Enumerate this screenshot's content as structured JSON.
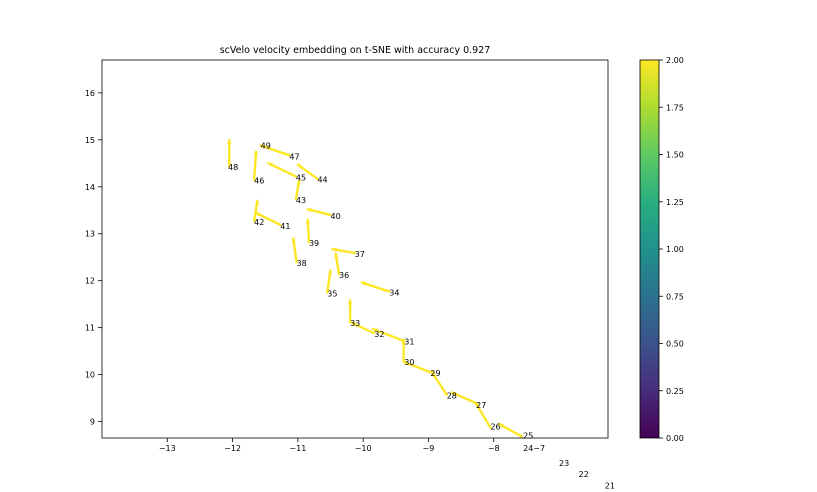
{
  "chart_data": {
    "type": "scatter",
    "title": "scVelo velocity embedding on t-SNE with accuracy 0.927",
    "xlim": [
      -14.0,
      -6.25
    ],
    "ylim": [
      8.65,
      16.7
    ],
    "x_ticks": [
      -13,
      -12,
      -11,
      -10,
      -9,
      -8
    ],
    "x_tick_labels": [
      "−13",
      "−12",
      "−11",
      "−10",
      "−9",
      "−8"
    ],
    "y_ticks": [
      9,
      10,
      11,
      12,
      13,
      14,
      15,
      16
    ],
    "y_tick_labels": [
      "9",
      "10",
      "11",
      "12",
      "13",
      "14",
      "15",
      "16"
    ],
    "arrow_color": "#fde725",
    "points": [
      {
        "label": "25",
        "x": -7.55,
        "y": 8.7
      },
      {
        "label": "26",
        "x": -8.05,
        "y": 8.9
      },
      {
        "label": "27",
        "x": -8.27,
        "y": 9.35
      },
      {
        "label": "28",
        "x": -8.72,
        "y": 9.55
      },
      {
        "label": "29",
        "x": -8.97,
        "y": 10.03
      },
      {
        "label": "30",
        "x": -9.37,
        "y": 10.27
      },
      {
        "label": "31",
        "x": -9.37,
        "y": 10.7
      },
      {
        "label": "32",
        "x": -9.83,
        "y": 10.87
      },
      {
        "label": "33",
        "x": -10.2,
        "y": 11.1
      },
      {
        "label": "34",
        "x": -9.6,
        "y": 11.75
      },
      {
        "label": "35",
        "x": -10.55,
        "y": 11.73
      },
      {
        "label": "36",
        "x": -10.37,
        "y": 12.12
      },
      {
        "label": "37",
        "x": -10.13,
        "y": 12.57
      },
      {
        "label": "38",
        "x": -11.02,
        "y": 12.38
      },
      {
        "label": "39",
        "x": -10.83,
        "y": 12.8
      },
      {
        "label": "40",
        "x": -10.5,
        "y": 13.38
      },
      {
        "label": "41",
        "x": -11.27,
        "y": 13.17
      },
      {
        "label": "42",
        "x": -11.67,
        "y": 13.25
      },
      {
        "label": "43",
        "x": -11.03,
        "y": 13.72
      },
      {
        "label": "44",
        "x": -10.7,
        "y": 14.15
      },
      {
        "label": "45",
        "x": -11.03,
        "y": 14.2
      },
      {
        "label": "46",
        "x": -11.67,
        "y": 14.13
      },
      {
        "label": "47",
        "x": -11.13,
        "y": 14.65
      },
      {
        "label": "48",
        "x": -12.07,
        "y": 14.42
      },
      {
        "label": "49",
        "x": -11.57,
        "y": 14.88
      }
    ],
    "arrows": [
      [
        -7.57,
        8.68,
        -7.92,
        8.95
      ],
      [
        -8.05,
        8.87,
        -8.27,
        9.38
      ],
      [
        -8.25,
        9.38,
        -8.64,
        9.62
      ],
      [
        -8.72,
        9.57,
        -8.95,
        10.06
      ],
      [
        -8.97,
        10.05,
        -9.38,
        10.27
      ],
      [
        -9.38,
        10.29,
        -9.38,
        10.74
      ],
      [
        -9.38,
        10.72,
        -9.85,
        10.97
      ],
      [
        -9.83,
        10.88,
        -10.17,
        11.1
      ],
      [
        -10.2,
        11.12,
        -10.2,
        11.58
      ],
      [
        -9.6,
        11.77,
        -10.02,
        11.96
      ],
      [
        -10.55,
        11.75,
        -10.5,
        12.22
      ],
      [
        -10.37,
        12.14,
        -10.42,
        12.57
      ],
      [
        -10.13,
        12.59,
        -10.47,
        12.67
      ],
      [
        -11.02,
        12.4,
        -11.07,
        12.9
      ],
      [
        -10.83,
        12.82,
        -10.85,
        13.3
      ],
      [
        -10.5,
        13.4,
        -10.85,
        13.52
      ],
      [
        -11.27,
        13.19,
        -11.65,
        13.45
      ],
      [
        -11.67,
        13.27,
        -11.62,
        13.7
      ],
      [
        -11.03,
        13.74,
        -10.98,
        14.13
      ],
      [
        -10.7,
        14.17,
        -11.0,
        14.47
      ],
      [
        -11.03,
        14.22,
        -11.45,
        14.5
      ],
      [
        -11.67,
        14.15,
        -11.64,
        14.75
      ],
      [
        -11.13,
        14.67,
        -11.57,
        14.88
      ],
      [
        -12.05,
        14.44,
        -12.05,
        15.0
      ]
    ],
    "overflow_labels": [
      {
        "label": "24",
        "text": "24−7",
        "x": -7.55,
        "y": 8.44
      },
      {
        "label": "23",
        "text": "23",
        "x": -7.0,
        "y": 8.12
      },
      {
        "label": "22",
        "text": "22",
        "x": -6.7,
        "y": 7.88
      },
      {
        "label": "21",
        "text": "21",
        "x": -6.3,
        "y": 7.64
      }
    ],
    "colorbar": {
      "range": [
        0.0,
        2.0
      ],
      "ticks": [
        "0.00",
        "0.25",
        "0.50",
        "0.75",
        "1.00",
        "1.25",
        "1.50",
        "1.75",
        "2.00"
      ],
      "colormap": "viridis"
    },
    "grid": false,
    "legend": "none"
  }
}
